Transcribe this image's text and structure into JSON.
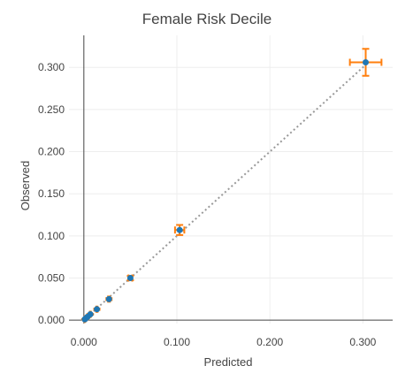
{
  "chart_data": {
    "type": "scatter",
    "title": "Female Risk Decile",
    "xlabel": "Predicted",
    "ylabel": "Observed",
    "xlim": [
      -0.016,
      0.332
    ],
    "ylim": [
      -0.004,
      0.338
    ],
    "x_ticks": [
      {
        "value": 0.0,
        "label": "0.000"
      },
      {
        "value": 0.1,
        "label": "0.100"
      },
      {
        "value": 0.2,
        "label": "0.200"
      },
      {
        "value": 0.3,
        "label": "0.300"
      }
    ],
    "y_ticks": [
      {
        "value": 0.0,
        "label": "0.000"
      },
      {
        "value": 0.05,
        "label": "0.050"
      },
      {
        "value": 0.1,
        "label": "0.100"
      },
      {
        "value": 0.15,
        "label": "0.150"
      },
      {
        "value": 0.2,
        "label": "0.200"
      },
      {
        "value": 0.25,
        "label": "0.250"
      },
      {
        "value": 0.3,
        "label": "0.300"
      }
    ],
    "grid": true,
    "reference_line": {
      "from": [
        0,
        0
      ],
      "to": [
        0.305,
        0.305
      ],
      "style": "dotted",
      "color": "#999999"
    },
    "marker_color": "#1f77b4",
    "error_color": "#ff7f0e",
    "points": [
      {
        "x": 0.001,
        "y": 0.001,
        "xerr": 0.0003,
        "yerr": 0.0003
      },
      {
        "x": 0.002,
        "y": 0.002,
        "xerr": 0.0003,
        "yerr": 0.0003
      },
      {
        "x": 0.004,
        "y": 0.004,
        "xerr": 0.0004,
        "yerr": 0.0004
      },
      {
        "x": 0.007,
        "y": 0.007,
        "xerr": 0.0005,
        "yerr": 0.0005
      },
      {
        "x": 0.014,
        "y": 0.013,
        "xerr": 0.0007,
        "yerr": 0.0008
      },
      {
        "x": 0.027,
        "y": 0.025,
        "xerr": 0.001,
        "yerr": 0.0012
      },
      {
        "x": 0.05,
        "y": 0.05,
        "xerr": 0.002,
        "yerr": 0.0025
      },
      {
        "x": 0.103,
        "y": 0.107,
        "xerr": 0.005,
        "yerr": 0.006
      },
      {
        "x": 0.303,
        "y": 0.306,
        "xerr": 0.017,
        "yerr": 0.016
      }
    ]
  }
}
